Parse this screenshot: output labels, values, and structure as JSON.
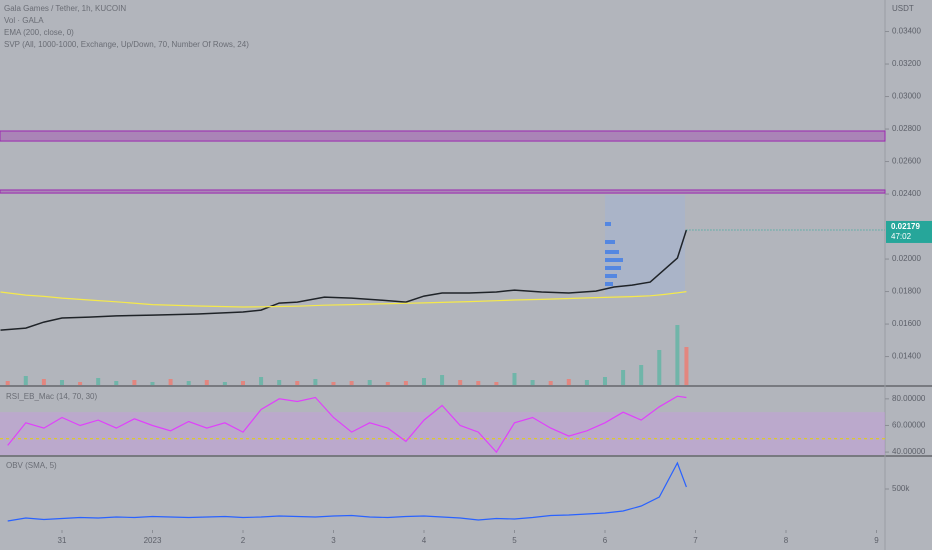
{
  "header": {
    "symbol": "Gala Games / Tether, 1h, KUCOIN",
    "indicators": [
      "Vol · GALA",
      "EMA (200, close, 0)",
      "SVP (All, 1000-1000, Exchange, Up/Down, 70, Number Of Rows, 24)"
    ],
    "currency": "USDT"
  },
  "chart_data": [
    {
      "type": "line",
      "title": "price",
      "xlim": [
        -0.685,
        9.094
      ],
      "xticks": [
        {
          "value": 0,
          "label": "31"
        },
        {
          "value": 1,
          "label": "2023"
        },
        {
          "value": 2,
          "label": "2"
        },
        {
          "value": 3,
          "label": "3"
        },
        {
          "value": 4,
          "label": "4"
        },
        {
          "value": 5,
          "label": "5"
        },
        {
          "value": 6,
          "label": "6"
        },
        {
          "value": 7,
          "label": "7"
        },
        {
          "value": 8,
          "label": "8"
        },
        {
          "value": 9,
          "label": "9"
        }
      ],
      "ylim": [
        0.01225,
        0.03594
      ],
      "yticks": [
        {
          "value": 0.034,
          "label": "0.03400"
        },
        {
          "value": 0.032,
          "label": "0.03200"
        },
        {
          "value": 0.03,
          "label": "0.03000"
        },
        {
          "value": 0.028,
          "label": "0.02800"
        },
        {
          "value": 0.026,
          "label": "0.02600"
        },
        {
          "value": 0.024,
          "label": "0.02400"
        },
        {
          "value": 0.02,
          "label": "0.02000"
        },
        {
          "value": 0.018,
          "label": "0.01800"
        },
        {
          "value": 0.016,
          "label": "0.01600"
        },
        {
          "value": 0.014,
          "label": "0.01400"
        }
      ],
      "x": [
        -0.68,
        -0.4,
        -0.2,
        0,
        0.3,
        0.6,
        1.0,
        1.5,
        2.0,
        2.2,
        2.4,
        2.6,
        2.9,
        3.2,
        3.5,
        3.8,
        4.0,
        4.2,
        4.5,
        4.8,
        5.0,
        5.3,
        5.6,
        5.9,
        6.1,
        6.3,
        6.5,
        6.65,
        6.8,
        6.9
      ],
      "series": [
        {
          "color": "#1f2328",
          "values": [
            0.01563,
            0.01575,
            0.01612,
            0.01637,
            0.01643,
            0.0165,
            0.01655,
            0.01662,
            0.01674,
            0.01686,
            0.01729,
            0.01735,
            0.01766,
            0.0176,
            0.01748,
            0.01735,
            0.01772,
            0.01791,
            0.01791,
            0.01797,
            0.01809,
            0.01797,
            0.01791,
            0.01803,
            0.01828,
            0.0184,
            0.01858,
            0.01932,
            0.02006,
            0.02179
          ]
        },
        {
          "color": "#f5e94b",
          "values": [
            0.01797,
            0.01778,
            0.0177,
            0.0176,
            0.01748,
            0.01737,
            0.0172,
            0.01711,
            0.01705,
            0.01706,
            0.01708,
            0.0171,
            0.01716,
            0.0172,
            0.01724,
            0.01728,
            0.0173,
            0.01733,
            0.01738,
            0.01744,
            0.01748,
            0.01752,
            0.01757,
            0.01763,
            0.01766,
            0.01769,
            0.01774,
            0.01782,
            0.01792,
            0.018
          ]
        }
      ],
      "zones": [
        [
          0.02726,
          0.02788
        ],
        [
          0.02406,
          0.02425
        ]
      ],
      "zone_color": "#9c27b0",
      "last_price_label": "0.02179",
      "countdown": "47:02",
      "last_price_color": "#26a69a"
    },
    {
      "type": "bar",
      "title": "volume",
      "ylim": [
        0,
        100
      ],
      "x": [
        -0.6,
        -0.4,
        -0.2,
        0,
        0.2,
        0.4,
        0.6,
        0.8,
        1.0,
        1.2,
        1.4,
        1.6,
        1.8,
        2.0,
        2.2,
        2.4,
        2.6,
        2.8,
        3.0,
        3.2,
        3.4,
        3.6,
        3.8,
        4.0,
        4.2,
        4.4,
        4.6,
        4.8,
        5.0,
        5.2,
        5.4,
        5.6,
        5.8,
        6.0,
        6.2,
        6.4,
        6.6,
        6.8,
        6.9
      ],
      "values": [
        4,
        9,
        6,
        5,
        3,
        7,
        4,
        5,
        3,
        6,
        4,
        5,
        3,
        4,
        8,
        5,
        4,
        6,
        3,
        4,
        5,
        3,
        4,
        7,
        10,
        5,
        4,
        3,
        12,
        5,
        4,
        6,
        5,
        8,
        15,
        20,
        35,
        60,
        38
      ],
      "colors": [
        "#ef7a6f",
        "#5fb5a4",
        "#ef7a6f",
        "#5fb5a4",
        "#ef7a6f",
        "#5fb5a4",
        "#5fb5a4",
        "#ef7a6f",
        "#5fb5a4",
        "#ef7a6f",
        "#5fb5a4",
        "#ef7a6f",
        "#5fb5a4",
        "#ef7a6f",
        "#5fb5a4",
        "#5fb5a4",
        "#ef7a6f",
        "#5fb5a4",
        "#ef7a6f",
        "#ef7a6f",
        "#5fb5a4",
        "#ef7a6f",
        "#ef7a6f",
        "#5fb5a4",
        "#5fb5a4",
        "#ef7a6f",
        "#ef7a6f",
        "#ef7a6f",
        "#5fb5a4",
        "#5fb5a4",
        "#ef7a6f",
        "#ef7a6f",
        "#5fb5a4",
        "#5fb5a4",
        "#5fb5a4",
        "#5fb5a4",
        "#5fb5a4",
        "#5fb5a4",
        "#ef7a6f"
      ]
    },
    {
      "type": "line",
      "title": "RSI_EB_Mac (14, 70, 30)",
      "ylim": [
        37.8,
        88.9
      ],
      "yticks": [
        {
          "value": 80,
          "label": "80.00000"
        },
        {
          "value": 60,
          "label": "60.00000"
        },
        {
          "value": 40,
          "label": "40.00000"
        }
      ],
      "band": [
        30,
        70
      ],
      "midline": 50,
      "x": [
        -0.6,
        -0.4,
        -0.2,
        0,
        0.2,
        0.4,
        0.6,
        0.8,
        1.0,
        1.2,
        1.4,
        1.6,
        1.8,
        2.0,
        2.2,
        2.4,
        2.6,
        2.8,
        3.0,
        3.2,
        3.4,
        3.6,
        3.8,
        4.0,
        4.2,
        4.4,
        4.6,
        4.8,
        5.0,
        5.2,
        5.4,
        5.6,
        5.8,
        6.0,
        6.2,
        6.4,
        6.6,
        6.8,
        6.9
      ],
      "series": [
        {
          "color": "#e040fb",
          "values": [
            45,
            62,
            58,
            66,
            60,
            64,
            58,
            65,
            60,
            56,
            63,
            58,
            62,
            55,
            72,
            80,
            78,
            81,
            66,
            55,
            62,
            58,
            48,
            64,
            75,
            60,
            55,
            40,
            62,
            66,
            58,
            52,
            56,
            62,
            70,
            64,
            74,
            82,
            81
          ]
        }
      ]
    },
    {
      "type": "line",
      "title": "OBV (SMA, 5)",
      "ylim": [
        90000,
        820000
      ],
      "yticks": [
        {
          "value": 500000,
          "label": "500k"
        }
      ],
      "x": [
        -0.6,
        -0.4,
        -0.2,
        0,
        0.2,
        0.4,
        0.6,
        0.8,
        1.0,
        1.2,
        1.4,
        1.6,
        1.8,
        2.0,
        2.2,
        2.4,
        2.6,
        2.8,
        3.0,
        3.2,
        3.4,
        3.6,
        3.8,
        4.0,
        4.2,
        4.4,
        4.6,
        4.8,
        5.0,
        5.2,
        5.4,
        5.6,
        5.8,
        6.0,
        6.2,
        6.4,
        6.6,
        6.8,
        6.9
      ],
      "series": [
        {
          "color": "#2962ff",
          "values": [
            180000,
            210000,
            195000,
            205000,
            215000,
            210000,
            220000,
            215000,
            225000,
            220000,
            215000,
            220000,
            225000,
            215000,
            220000,
            230000,
            225000,
            220000,
            230000,
            235000,
            220000,
            215000,
            225000,
            230000,
            220000,
            210000,
            190000,
            205000,
            200000,
            215000,
            235000,
            240000,
            250000,
            260000,
            280000,
            330000,
            420000,
            760000,
            520000
          ]
        }
      ]
    }
  ]
}
